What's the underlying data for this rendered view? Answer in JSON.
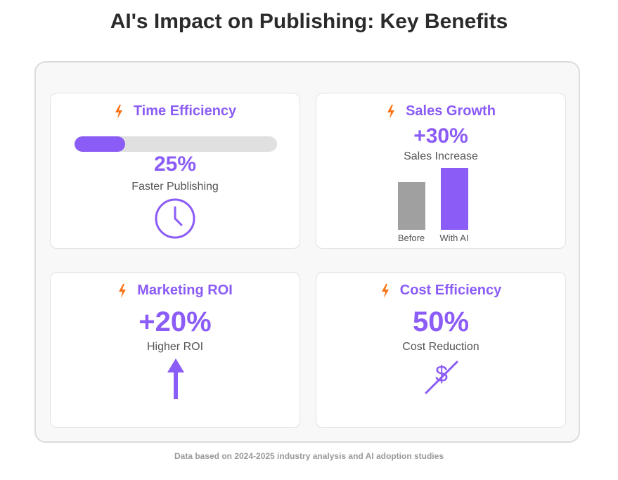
{
  "title": "AI's Impact on Publishing: Key Benefits",
  "colors": {
    "accent": "#8b5cf6",
    "bolt": "#f97316",
    "bar_before": "#a0a0a0"
  },
  "cards": {
    "time": {
      "title": "Time Efficiency",
      "icon": "lightning-bolt-icon",
      "progress": 25,
      "value": "25%",
      "label": "Faster Publishing",
      "illustration": "clock-icon"
    },
    "sales": {
      "title": "Sales Growth",
      "icon": "lightning-bolt-icon",
      "value": "+30%",
      "label": "Sales Increase",
      "bars": [
        {
          "label": "Before",
          "value": 100
        },
        {
          "label": "With AI",
          "value": 130
        }
      ]
    },
    "roi": {
      "title": "Marketing ROI",
      "icon": "lightning-bolt-icon",
      "value": "+20%",
      "label": "Higher ROI",
      "illustration": "up-arrow-icon"
    },
    "cost": {
      "title": "Cost Efficiency",
      "icon": "lightning-bolt-icon",
      "value": "50%",
      "label": "Cost Reduction",
      "illustration": "crossed-dollar-icon",
      "symbol": "$"
    }
  },
  "footer": "Data based on 2024-2025 industry analysis and AI adoption studies"
}
